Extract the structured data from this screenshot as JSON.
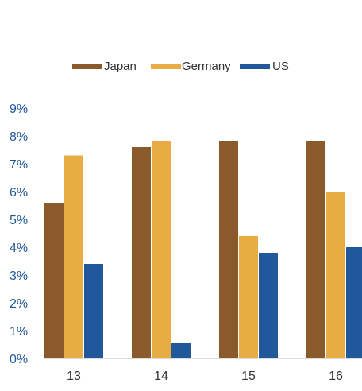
{
  "chart_data": {
    "type": "bar",
    "title": "",
    "xlabel": "",
    "ylabel": "",
    "categories": [
      "13",
      "14",
      "15",
      "16"
    ],
    "series": [
      {
        "name": "Japan",
        "color": "#8b5a2b",
        "values": [
          5.6,
          7.6,
          7.8,
          7.8
        ]
      },
      {
        "name": "Germany",
        "color": "#e8ad42",
        "values": [
          7.3,
          7.8,
          4.4,
          6.0
        ]
      },
      {
        "name": "US",
        "color": "#21589b",
        "values": [
          3.4,
          0.55,
          3.8,
          4.0
        ]
      }
    ],
    "ylim": [
      0,
      9
    ],
    "yticks": [
      "0%",
      "1%",
      "2%",
      "3%",
      "4%",
      "5%",
      "6%",
      "7%",
      "8%",
      "9%"
    ],
    "grid": false,
    "legend_position": "top-center",
    "colors": {
      "y_tick_text": "#21589b",
      "x_tick_text": "#333333",
      "legend_text": "#333333",
      "axis_line": "#dddddd"
    }
  }
}
